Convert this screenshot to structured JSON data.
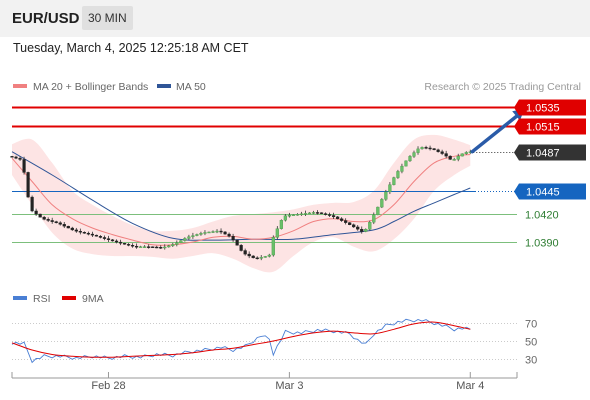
{
  "header": {
    "pair": "EUR/USD",
    "timeframe": "30 MIN",
    "datetime": "Tuesday, March 4, 2025 12:25:18 AM CET"
  },
  "legend": {
    "ma20_label": "MA 20 + Bollinger Bands",
    "ma50_label": "MA 50",
    "copyright": "Research © 2025 Trading Central",
    "ma20_color": "#f08080",
    "ma50_color": "#2f5597"
  },
  "rsi_legend": {
    "rsi_label": "RSI",
    "ma_label": "9MA",
    "rsi_color": "#4a7fd4",
    "ma_color": "#e00000"
  },
  "colors": {
    "resistance": "#e00000",
    "pivot": "#1565c0",
    "support": "#2e7d32",
    "band_fill": "#fde4e4",
    "arrow": "#2a5ba8",
    "up_candle": "#6abf69",
    "down_candle": "#222222"
  },
  "chart_data": [
    {
      "type": "candlestick",
      "title": "EUR/USD",
      "ylim": [
        1.036,
        1.0545
      ],
      "x_ticks": [
        "Feb 28",
        "Mar 3",
        "Mar 4"
      ],
      "levels": [
        {
          "value": 1.0535,
          "label": "1.0535",
          "kind": "resistance"
        },
        {
          "value": 1.0515,
          "label": "1.0515",
          "kind": "resistance"
        },
        {
          "value": 1.0487,
          "label": "1.0487",
          "kind": "current"
        },
        {
          "value": 1.0445,
          "label": "1.0445",
          "kind": "pivot"
        },
        {
          "value": 1.042,
          "label": "1.0420",
          "kind": "support"
        },
        {
          "value": 1.039,
          "label": "1.0390",
          "kind": "support"
        }
      ],
      "price_path": [
        [
          0,
          1.0482
        ],
        [
          3,
          1.0478
        ],
        [
          5,
          1.0425
        ],
        [
          8,
          1.0415
        ],
        [
          12,
          1.041
        ],
        [
          16,
          1.0402
        ],
        [
          20,
          1.0398
        ],
        [
          24,
          1.0393
        ],
        [
          28,
          1.0388
        ],
        [
          31,
          1.0385
        ],
        [
          34,
          1.0385
        ],
        [
          38,
          1.0384
        ],
        [
          41,
          1.0388
        ],
        [
          44,
          1.0395
        ],
        [
          48,
          1.04
        ],
        [
          52,
          1.0402
        ],
        [
          55,
          1.0395
        ],
        [
          58,
          1.0378
        ],
        [
          61,
          1.0372
        ],
        [
          64,
          1.0375
        ],
        [
          65,
          1.0377
        ],
        [
          65.5,
          1.0395
        ],
        [
          68,
          1.0418
        ],
        [
          72,
          1.042
        ],
        [
          76,
          1.0422
        ],
        [
          80,
          1.0418
        ],
        [
          83,
          1.0412
        ],
        [
          86,
          1.0405
        ],
        [
          88,
          1.04
        ],
        [
          90,
          1.0415
        ],
        [
          93,
          1.044
        ],
        [
          96,
          1.0463
        ],
        [
          99,
          1.048
        ],
        [
          102,
          1.0492
        ],
        [
          105,
          1.049
        ],
        [
          108,
          1.0484
        ],
        [
          110,
          1.0477
        ],
        [
          112,
          1.0484
        ],
        [
          114,
          1.0487
        ]
      ],
      "ma20": [
        [
          0,
          1.048
        ],
        [
          5,
          1.0455
        ],
        [
          10,
          1.043
        ],
        [
          15,
          1.0415
        ],
        [
          20,
          1.0405
        ],
        [
          25,
          1.0398
        ],
        [
          30,
          1.0392
        ],
        [
          35,
          1.0387
        ],
        [
          40,
          1.0387
        ],
        [
          45,
          1.039
        ],
        [
          50,
          1.0395
        ],
        [
          55,
          1.0396
        ],
        [
          60,
          1.0393
        ],
        [
          65,
          1.0395
        ],
        [
          70,
          1.0402
        ],
        [
          75,
          1.0412
        ],
        [
          80,
          1.0415
        ],
        [
          85,
          1.0412
        ],
        [
          90,
          1.0414
        ],
        [
          95,
          1.043
        ],
        [
          100,
          1.0455
        ],
        [
          105,
          1.0475
        ],
        [
          110,
          1.0482
        ],
        [
          114,
          1.0484
        ]
      ],
      "ma50": [
        [
          0,
          1.0487
        ],
        [
          10,
          1.0462
        ],
        [
          20,
          1.0435
        ],
        [
          30,
          1.041
        ],
        [
          40,
          1.0394
        ],
        [
          50,
          1.0392
        ],
        [
          60,
          1.0393
        ],
        [
          70,
          1.0393
        ],
        [
          80,
          1.0398
        ],
        [
          90,
          1.0403
        ],
        [
          95,
          1.0412
        ],
        [
          100,
          1.0423
        ],
        [
          105,
          1.0432
        ],
        [
          110,
          1.0441
        ],
        [
          114,
          1.0448
        ]
      ],
      "band_upper": [
        [
          0,
          1.0495
        ],
        [
          5,
          1.05
        ],
        [
          10,
          1.0475
        ],
        [
          15,
          1.0445
        ],
        [
          20,
          1.043
        ],
        [
          25,
          1.0418
        ],
        [
          30,
          1.0408
        ],
        [
          35,
          1.0402
        ],
        [
          40,
          1.0402
        ],
        [
          45,
          1.0405
        ],
        [
          50,
          1.0412
        ],
        [
          55,
          1.0418
        ],
        [
          60,
          1.042
        ],
        [
          65,
          1.0422
        ],
        [
          70,
          1.0425
        ],
        [
          75,
          1.043
        ],
        [
          80,
          1.0432
        ],
        [
          85,
          1.0433
        ],
        [
          90,
          1.0445
        ],
        [
          95,
          1.0475
        ],
        [
          100,
          1.05
        ],
        [
          105,
          1.0505
        ],
        [
          110,
          1.05
        ],
        [
          114,
          1.0494
        ]
      ],
      "band_lower": [
        [
          0,
          1.0462
        ],
        [
          5,
          1.043
        ],
        [
          10,
          1.04
        ],
        [
          15,
          1.0383
        ],
        [
          20,
          1.0377
        ],
        [
          25,
          1.0375
        ],
        [
          30,
          1.0375
        ],
        [
          35,
          1.0374
        ],
        [
          40,
          1.0372
        ],
        [
          45,
          1.0375
        ],
        [
          50,
          1.0378
        ],
        [
          55,
          1.0372
        ],
        [
          60,
          1.0362
        ],
        [
          65,
          1.0358
        ],
        [
          70,
          1.0375
        ],
        [
          75,
          1.039
        ],
        [
          80,
          1.0395
        ],
        [
          85,
          1.0385
        ],
        [
          90,
          1.038
        ],
        [
          95,
          1.0393
        ],
        [
          100,
          1.0415
        ],
        [
          105,
          1.0445
        ],
        [
          110,
          1.0462
        ],
        [
          114,
          1.0472
        ]
      ],
      "forecast_arrow": {
        "from": [
          114,
          1.0487
        ],
        "to": [
          128,
          1.0533
        ]
      }
    },
    {
      "type": "line",
      "title": "RSI",
      "ylim": [
        20,
        80
      ],
      "y_ticks": [
        70,
        50,
        30
      ],
      "series": [
        {
          "name": "RSI",
          "values": [
            [
              0,
              48
            ],
            [
              3,
              47
            ],
            [
              5,
              28
            ],
            [
              8,
              33
            ],
            [
              12,
              33
            ],
            [
              16,
              31
            ],
            [
              20,
              33
            ],
            [
              24,
              31
            ],
            [
              28,
              33
            ],
            [
              32,
              32
            ],
            [
              36,
              35
            ],
            [
              40,
              34
            ],
            [
              44,
              38
            ],
            [
              48,
              40
            ],
            [
              52,
              43
            ],
            [
              55,
              40
            ],
            [
              58,
              44
            ],
            [
              60,
              50
            ],
            [
              62,
              56
            ],
            [
              64,
              52
            ],
            [
              65,
              36
            ],
            [
              68,
              60
            ],
            [
              72,
              59
            ],
            [
              76,
              62
            ],
            [
              80,
              61
            ],
            [
              84,
              58
            ],
            [
              86,
              51
            ],
            [
              88,
              46
            ],
            [
              90,
              58
            ],
            [
              93,
              67
            ],
            [
              96,
              71
            ],
            [
              99,
              73
            ],
            [
              102,
              73
            ],
            [
              105,
              70
            ],
            [
              108,
              66
            ],
            [
              110,
              63
            ],
            [
              112,
              64
            ],
            [
              114,
              63
            ]
          ]
        },
        {
          "name": "9MA",
          "values": [
            [
              0,
              48
            ],
            [
              5,
              40
            ],
            [
              10,
              35
            ],
            [
              15,
              33
            ],
            [
              20,
              32
            ],
            [
              25,
              32
            ],
            [
              30,
              33
            ],
            [
              35,
              34
            ],
            [
              40,
              35
            ],
            [
              45,
              37
            ],
            [
              50,
              40
            ],
            [
              55,
              42
            ],
            [
              60,
              46
            ],
            [
              65,
              50
            ],
            [
              70,
              55
            ],
            [
              75,
              59
            ],
            [
              80,
              61
            ],
            [
              85,
              59
            ],
            [
              90,
              58
            ],
            [
              95,
              63
            ],
            [
              100,
              69
            ],
            [
              105,
              71
            ],
            [
              110,
              67
            ],
            [
              114,
              63
            ]
          ]
        }
      ]
    }
  ]
}
